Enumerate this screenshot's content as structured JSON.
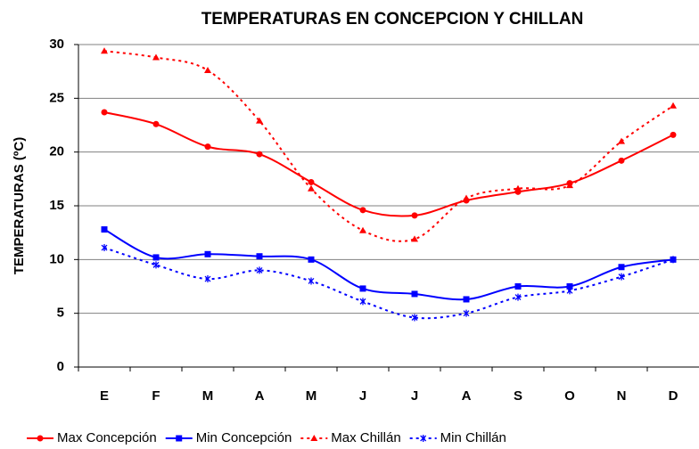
{
  "chart_data": {
    "type": "line",
    "title": "TEMPERATURAS  EN CONCEPCION Y CHILLAN",
    "y_label": "TEMPERATURAS (ºC)",
    "categories": [
      "E",
      "F",
      "M",
      "A",
      "M",
      "J",
      "J",
      "A",
      "S",
      "O",
      "N",
      "D"
    ],
    "series": [
      {
        "name": "Max Concepción",
        "color": "#ff0000",
        "dashed": false,
        "marker": "circle",
        "values": [
          23.7,
          22.6,
          20.5,
          19.8,
          17.2,
          14.6,
          14.1,
          15.5,
          16.3,
          17.1,
          19.2,
          21.6
        ]
      },
      {
        "name": "Min Concepción",
        "color": "#0000ff",
        "dashed": false,
        "marker": "square",
        "values": [
          12.8,
          10.2,
          10.5,
          10.3,
          10.0,
          7.3,
          6.8,
          6.3,
          7.5,
          7.5,
          9.3,
          10.0
        ]
      },
      {
        "name": "Max Chillán",
        "color": "#ff0000",
        "dashed": true,
        "marker": "triangle",
        "values": [
          29.4,
          28.8,
          27.6,
          22.9,
          16.6,
          12.7,
          11.9,
          15.7,
          16.6,
          16.9,
          21.0,
          24.3
        ]
      },
      {
        "name": "Min Chillán",
        "color": "#0000ff",
        "dashed": true,
        "marker": "star",
        "values": [
          11.1,
          9.5,
          8.2,
          9.0,
          8.0,
          6.1,
          4.6,
          5.0,
          6.5,
          7.1,
          8.4,
          10.0
        ]
      }
    ],
    "ylim": [
      0,
      30
    ],
    "yticks": [
      0,
      5,
      10,
      15,
      20,
      25,
      30
    ],
    "grid": true,
    "legend": "bottom"
  }
}
